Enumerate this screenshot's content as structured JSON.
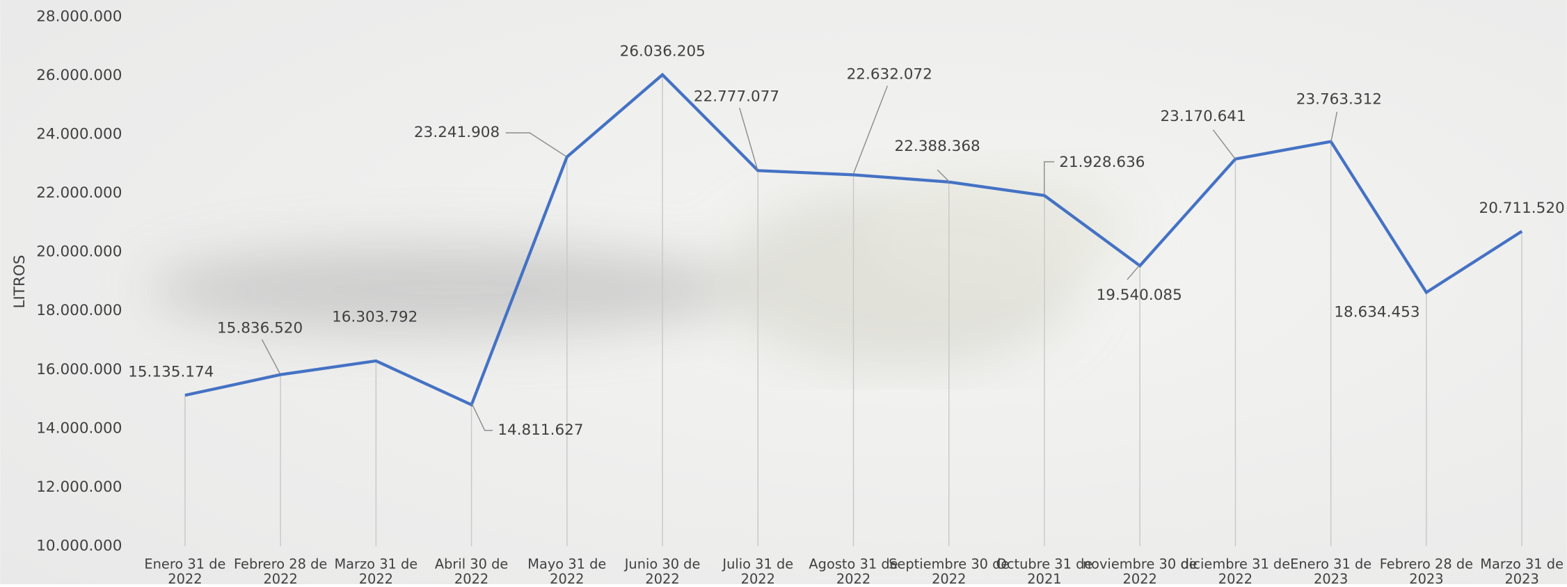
{
  "chart_data": {
    "type": "line",
    "y_label": "LITROS",
    "categories": [
      "Enero 31 de 2022",
      "Febrero 28 de 2022",
      "Marzo 31 de 2022",
      "Abril 30 de 2022",
      "Mayo 31 de 2022",
      "Junio 30 de 2022",
      "Julio 31 de 2022",
      "Agosto 31 de 2022",
      "Septiembre 30 de 2022",
      "Octubre 31 de 2021",
      "noviembre 30 de 2022",
      "diciembre 31 de 2022",
      "Enero 31 de 2023",
      "Febrero 28 de 2023",
      "Marzo 31 de 2023"
    ],
    "series": [
      {
        "name": "LITROS",
        "color": "#4472c4",
        "values": [
          15135174,
          15836520,
          16303792,
          14811627,
          23241908,
          26036205,
          22777077,
          22632072,
          22388368,
          21928636,
          19540085,
          23170641,
          23763312,
          18634453,
          20711520
        ],
        "value_labels": [
          "15.135.174",
          "15.836.520",
          "16.303.792",
          "14.811.627",
          "23.241.908",
          "26.036.205",
          "22.777.077",
          "22.632.072",
          "22.388.368",
          "21.928.636",
          "19.540.085",
          "23.170.641",
          "23.763.312",
          "18.634.453",
          "20.711.520"
        ]
      }
    ],
    "ylim": [
      10000000,
      28000000
    ],
    "yticks": [
      {
        "value": 10000000,
        "label": "10.000.000"
      },
      {
        "value": 12000000,
        "label": "12.000.000"
      },
      {
        "value": 14000000,
        "label": "14.000.000"
      },
      {
        "value": 16000000,
        "label": "16.000.000"
      },
      {
        "value": 18000000,
        "label": "18.000.000"
      },
      {
        "value": 20000000,
        "label": "20.000.000"
      },
      {
        "value": 22000000,
        "label": "22.000.000"
      },
      {
        "value": 24000000,
        "label": "24.000.000"
      },
      {
        "value": 26000000,
        "label": "26.000.000"
      },
      {
        "value": 28000000,
        "label": "28.000.000"
      }
    ]
  }
}
